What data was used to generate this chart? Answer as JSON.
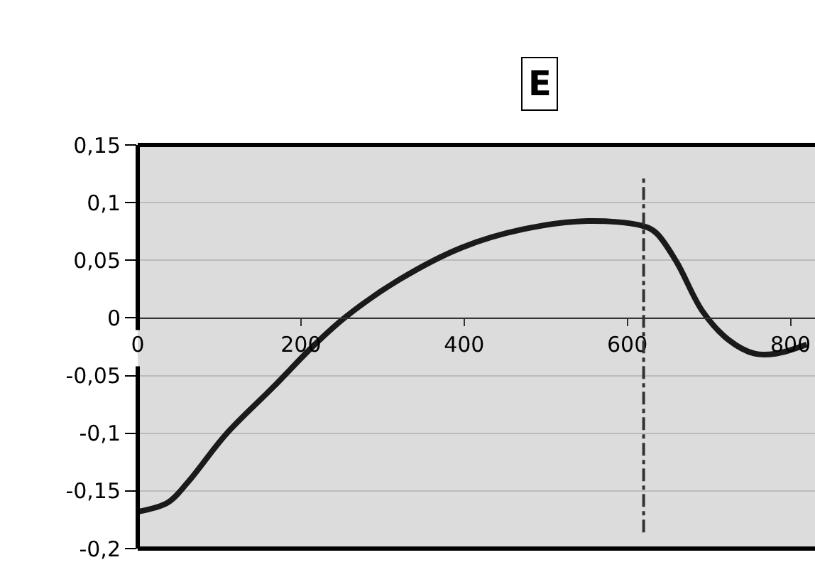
{
  "chart_data": {
    "type": "line",
    "annotations": [
      "E"
    ],
    "x": [
      0,
      37,
      62,
      108,
      166,
      217,
      255,
      320,
      397,
      473,
      551,
      618,
      635,
      660,
      692,
      724,
      756,
      782,
      820
    ],
    "series": [
      {
        "color": "#1a1a1a",
        "values": [
          -0.168,
          -0.16,
          -0.142,
          -0.101,
          -0.06,
          -0.023,
          0.001,
          0.033,
          0.061,
          0.077,
          0.084,
          0.08,
          0.074,
          0.049,
          0.006,
          -0.019,
          -0.031,
          -0.031,
          -0.023
        ]
      }
    ],
    "xlim": [
      0,
      830
    ],
    "xticks": [
      0,
      200,
      400,
      600,
      800
    ],
    "ylim": [
      -0.2,
      0.15
    ],
    "yticks": [
      {
        "value": 0.15,
        "label": "0,15"
      },
      {
        "value": 0.1,
        "label": "0,1"
      },
      {
        "value": 0.05,
        "label": "0,05"
      },
      {
        "value": 0,
        "label": "0"
      },
      {
        "value": -0.05,
        "label": "-0,05"
      },
      {
        "value": -0.1,
        "label": "-0,1"
      },
      {
        "value": -0.15,
        "label": "-0,15"
      },
      {
        "value": -0.2,
        "label": "-0,2"
      }
    ],
    "grid": "y",
    "legend": false,
    "marker": "none",
    "line_style": "solid",
    "ref_lines": [
      {
        "axis": "x",
        "value": 620,
        "line_style": "dashdot",
        "color": "#333333"
      }
    ]
  }
}
